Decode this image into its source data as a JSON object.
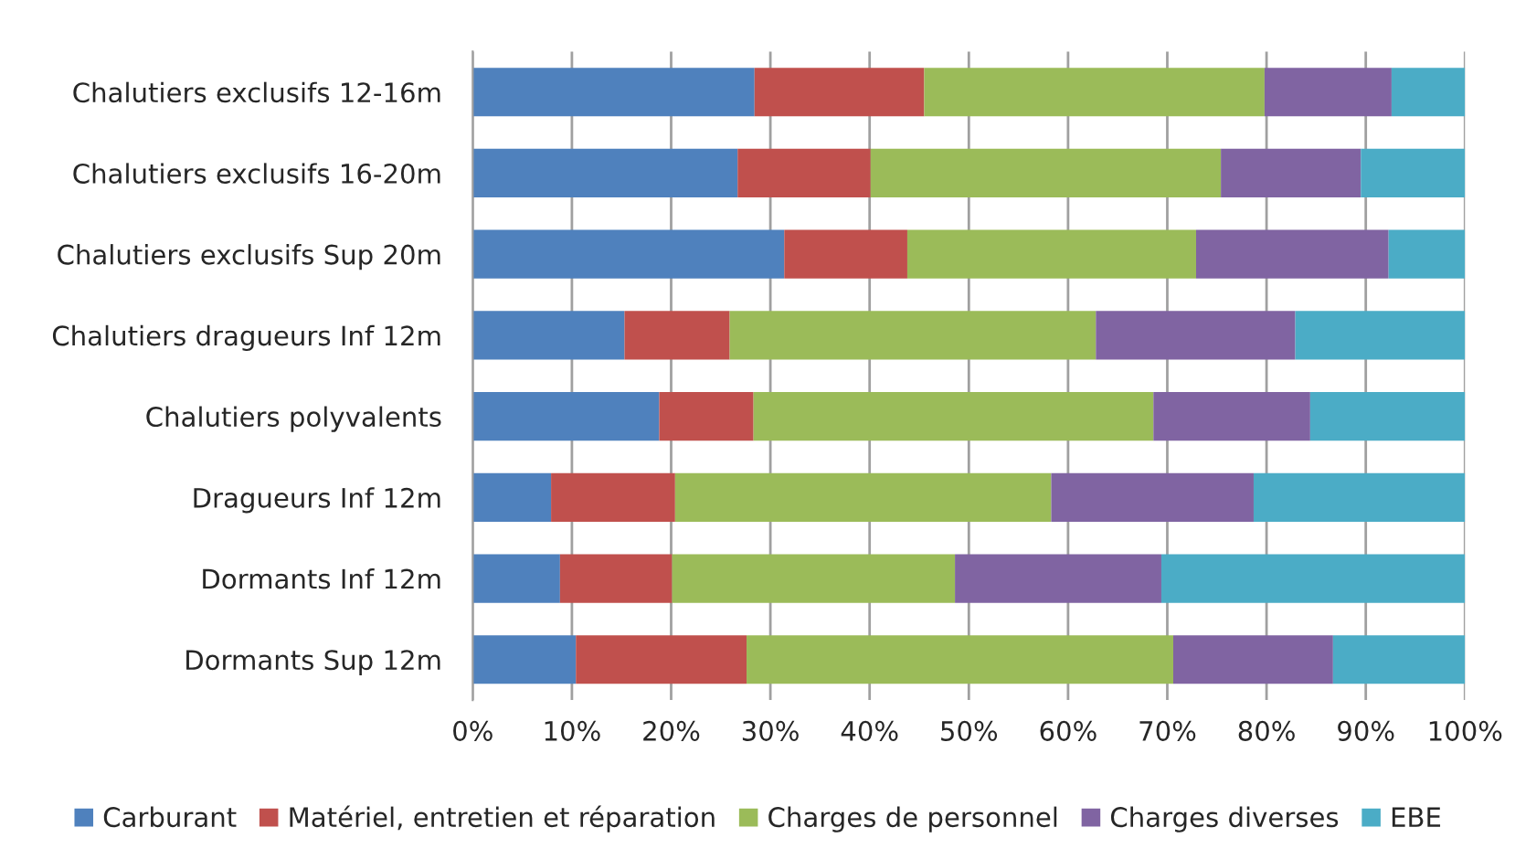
{
  "chart_data": {
    "type": "bar",
    "orientation": "horizontal",
    "stacked": true,
    "categories": [
      "Chalutiers exclusifs 12-16m",
      "Chalutiers exclusifs 16-20m",
      "Chalutiers exclusifs Sup 20m",
      "Chalutiers dragueurs Inf 12m",
      "Chalutiers polyvalents",
      "Dragueurs Inf 12m",
      "Dormants Inf 12m",
      "Dormants Sup 12m"
    ],
    "series": [
      {
        "name": "Carburant",
        "color": "#4f81bd",
        "values": [
          28.4,
          26.7,
          31.4,
          15.3,
          18.8,
          7.9,
          8.8,
          10.4
        ]
      },
      {
        "name": "Matériel, entretien et réparation",
        "color": "#c0504d",
        "values": [
          17.1,
          13.4,
          12.4,
          10.6,
          9.5,
          12.5,
          11.3,
          17.2
        ]
      },
      {
        "name": "Charges de personnel",
        "color": "#9bbb59",
        "values": [
          34.3,
          35.3,
          29.1,
          36.9,
          40.3,
          37.9,
          28.5,
          43.0
        ]
      },
      {
        "name": "Charges diverses",
        "color": "#8064a2",
        "values": [
          12.8,
          14.1,
          19.4,
          20.1,
          15.8,
          20.4,
          20.8,
          16.1
        ]
      },
      {
        "name": "EBE",
        "color": "#4bacc6",
        "values": [
          7.4,
          10.5,
          7.7,
          17.1,
          15.6,
          21.3,
          30.6,
          13.3
        ]
      }
    ],
    "xlim": [
      0,
      100
    ],
    "xticks": [
      {
        "value": 0,
        "label": "0%"
      },
      {
        "value": 10,
        "label": "10%"
      },
      {
        "value": 20,
        "label": "20%"
      },
      {
        "value": 30,
        "label": "30%"
      },
      {
        "value": 40,
        "label": "40%"
      },
      {
        "value": 50,
        "label": "50%"
      },
      {
        "value": 60,
        "label": "60%"
      },
      {
        "value": 70,
        "label": "70%"
      },
      {
        "value": 80,
        "label": "80%"
      },
      {
        "value": 90,
        "label": "90%"
      },
      {
        "value": 100,
        "label": "100%"
      }
    ],
    "grid": "x",
    "legend": "bottom"
  }
}
